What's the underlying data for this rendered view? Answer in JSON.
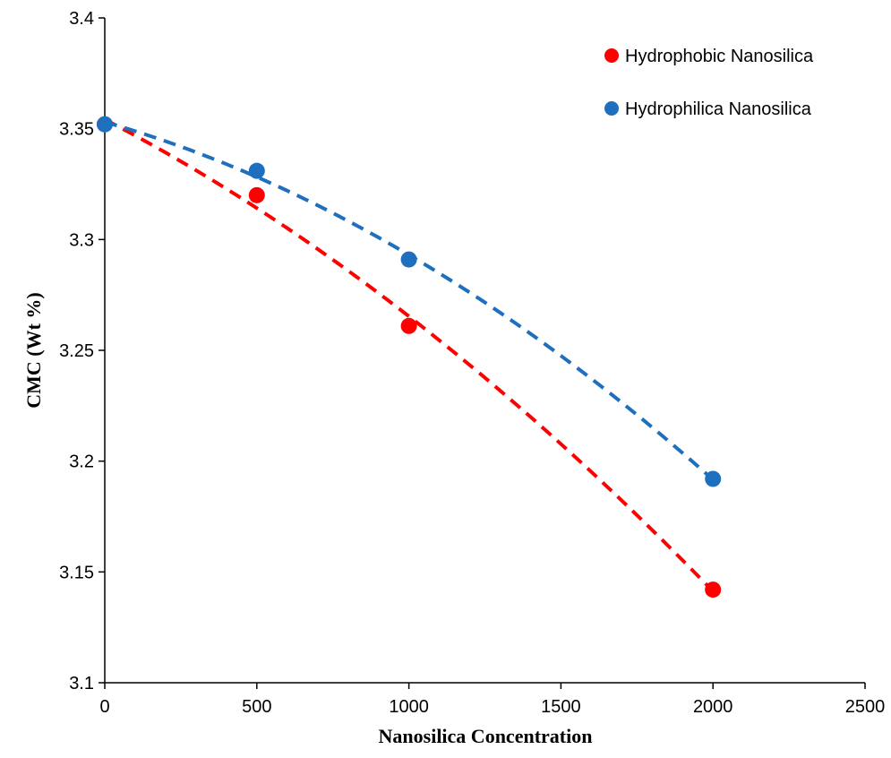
{
  "chart_data": {
    "type": "scatter",
    "title": "",
    "xlabel": "Nanosilica Concentration",
    "ylabel": "CMC (Wt %)",
    "xlim": [
      0,
      2500
    ],
    "ylim": [
      3.1,
      3.4
    ],
    "x_ticks": [
      "0",
      "500",
      "1000",
      "1500",
      "2000",
      "2500"
    ],
    "y_ticks": [
      "3.1",
      "3.15",
      "3.2",
      "3.25",
      "3.3",
      "3.35",
      "3.4"
    ],
    "grid": false,
    "legend_position": "top-right",
    "trendline": "dashed polynomial fit",
    "series": [
      {
        "name": "Hydrophobic Nanosilica",
        "color": "#ff0000",
        "x": [
          0,
          500,
          1000,
          2000
        ],
        "y": [
          3.352,
          3.32,
          3.261,
          3.142
        ]
      },
      {
        "name": "Hydrophilica Nanosilica",
        "color": "#1f6fbf",
        "x": [
          0,
          500,
          1000,
          2000
        ],
        "y": [
          3.352,
          3.331,
          3.291,
          3.192
        ]
      }
    ]
  }
}
